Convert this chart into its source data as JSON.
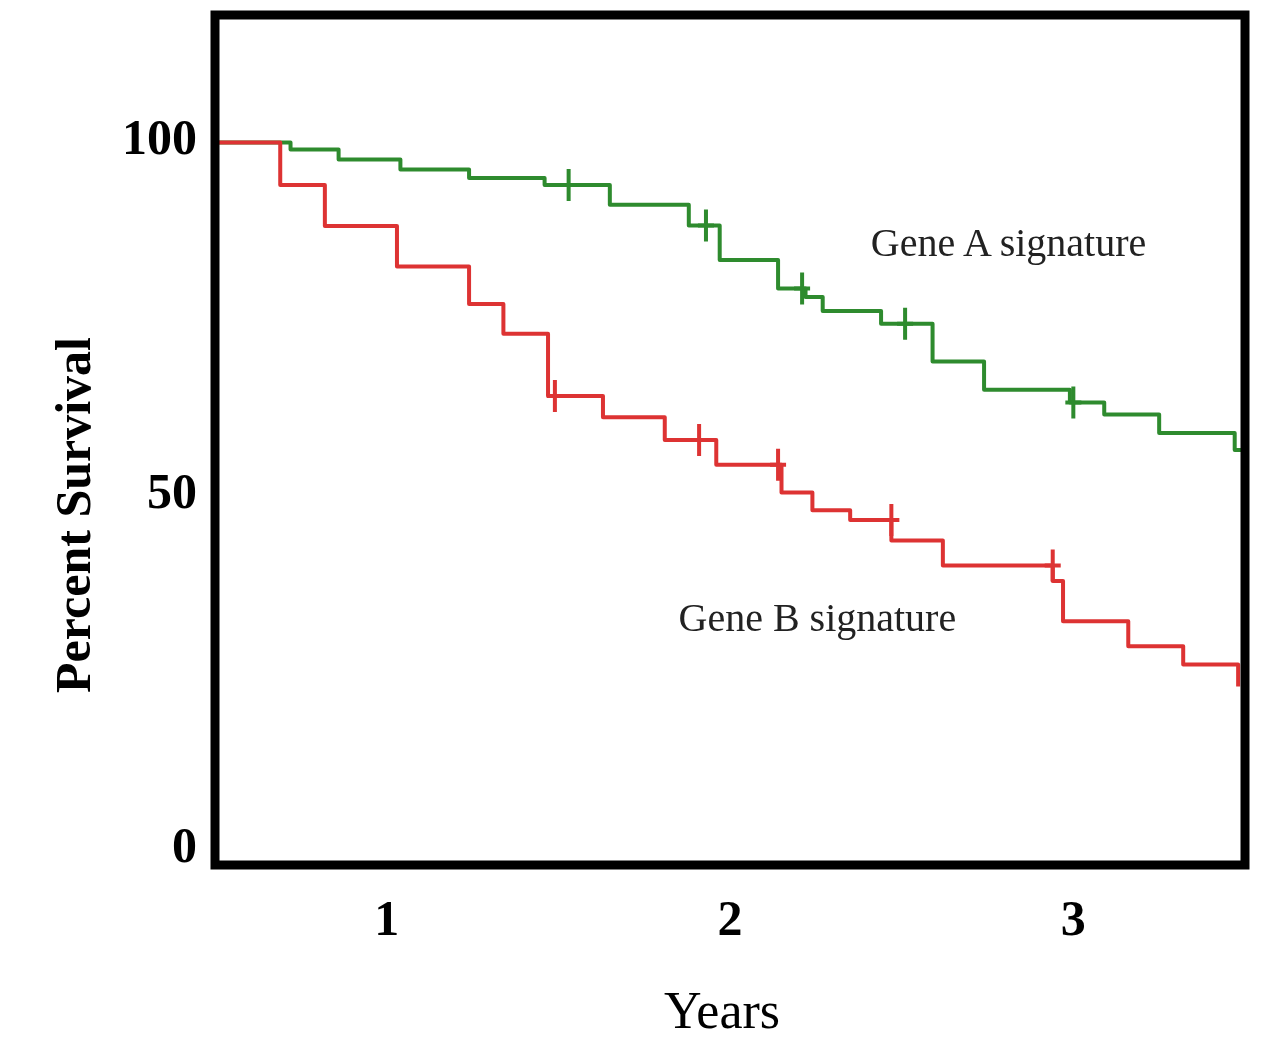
{
  "chart_data": {
    "type": "step",
    "xlabel": "Years",
    "ylabel": "Percent Survival",
    "xlim": [
      0.5,
      3.5
    ],
    "ylim": [
      -2,
      118
    ],
    "xticks": [
      1,
      2,
      3
    ],
    "yticks": [
      0,
      50,
      100
    ],
    "grid": false,
    "series": [
      {
        "name": "Gene A signature",
        "color": "#2e8b2e",
        "x": [
          0.5,
          0.72,
          0.86,
          1.04,
          1.24,
          1.46,
          1.65,
          1.88,
          1.97,
          2.14,
          2.22,
          2.27,
          2.44,
          2.59,
          2.74,
          2.99,
          3.09,
          3.25,
          3.47,
          3.5
        ],
        "values": [
          100,
          99,
          97.6,
          96.2,
          95,
          94,
          91.2,
          88.3,
          83.4,
          79.4,
          78.2,
          76.2,
          74.4,
          69.1,
          65.1,
          63.3,
          61.6,
          59,
          56.6,
          56.6
        ]
      },
      {
        "name": "Gene B signature",
        "color": "#dd3333",
        "x": [
          0.5,
          0.69,
          0.82,
          1.03,
          1.24,
          1.34,
          1.47,
          1.63,
          1.81,
          1.96,
          2.15,
          2.24,
          2.35,
          2.47,
          2.62,
          2.94,
          2.97,
          3.16,
          3.32,
          3.48
        ],
        "values": [
          100,
          94,
          88.2,
          82.5,
          77.2,
          73,
          64.2,
          61.2,
          58,
          54.5,
          50.6,
          48.1,
          46.7,
          43.8,
          40.3,
          38.1,
          32.4,
          28.9,
          26.3,
          23.2
        ]
      },
      {
        "type": "scatter",
        "marker": "cross",
        "color": "#2e8b2e",
        "x": [
          1.53,
          1.93,
          2.21,
          2.51,
          3.0
        ],
        "values": [
          94,
          88.3,
          79.4,
          74.4,
          63.3
        ]
      },
      {
        "type": "scatter",
        "marker": "cross",
        "color": "#dd3333",
        "x": [
          1.49,
          1.91,
          2.14,
          2.47,
          2.94
        ],
        "values": [
          64.2,
          58,
          54.5,
          46.7,
          40.3
        ]
      }
    ]
  }
}
